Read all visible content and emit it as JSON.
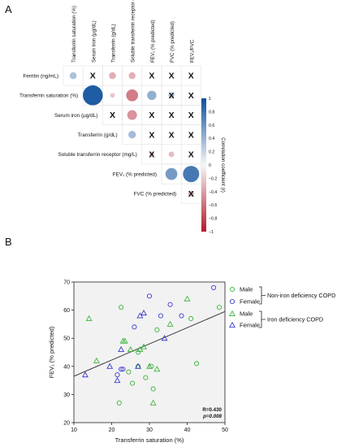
{
  "panels": {
    "a": "A",
    "b": "B"
  },
  "chart_data": [
    {
      "type": "heatmap",
      "columns": [
        "Transferrin saturation (%)",
        "Serum iron (µg/dL)",
        "Transferrin (g/dL)",
        "Soluble transferrin receptor (mg/L)",
        "FEV₁ (% predicted)",
        "FVC (% predicted)",
        "FEV₁/FVC"
      ],
      "rows": [
        "Ferritin (ng/mL)",
        "Transferrin saturation (%)",
        "Serum iron (µg/dL)",
        "Transferrin (g/dL)",
        "Soluble transferrin receptor (mg/L)",
        "FEV₁ (% predicted)",
        "FVC (% predicted)"
      ],
      "cells": [
        {
          "row": 0,
          "col": 0,
          "r": 0.32,
          "sig": true
        },
        {
          "row": 0,
          "col": 1,
          "r": 0.05,
          "sig": false
        },
        {
          "row": 0,
          "col": 2,
          "r": -0.32,
          "sig": true
        },
        {
          "row": 0,
          "col": 3,
          "r": -0.32,
          "sig": true
        },
        {
          "row": 0,
          "col": 4,
          "r": 0.0,
          "sig": false
        },
        {
          "row": 0,
          "col": 5,
          "r": 0.0,
          "sig": false
        },
        {
          "row": 0,
          "col": 6,
          "r": 0.0,
          "sig": false
        },
        {
          "row": 1,
          "col": 1,
          "r": 0.92,
          "sig": true
        },
        {
          "row": 1,
          "col": 2,
          "r": -0.22,
          "sig": true
        },
        {
          "row": 1,
          "col": 3,
          "r": -0.55,
          "sig": true
        },
        {
          "row": 1,
          "col": 4,
          "r": 0.43,
          "sig": true
        },
        {
          "row": 1,
          "col": 5,
          "r": 0.28,
          "sig": false
        },
        {
          "row": 1,
          "col": 6,
          "r": 0.0,
          "sig": false
        },
        {
          "row": 2,
          "col": 2,
          "r": 0.0,
          "sig": false
        },
        {
          "row": 2,
          "col": 3,
          "r": -0.45,
          "sig": true
        },
        {
          "row": 2,
          "col": 4,
          "r": 0.0,
          "sig": false
        },
        {
          "row": 2,
          "col": 5,
          "r": 0.08,
          "sig": false
        },
        {
          "row": 2,
          "col": 6,
          "r": 0.0,
          "sig": false
        },
        {
          "row": 3,
          "col": 3,
          "r": 0.35,
          "sig": true
        },
        {
          "row": 3,
          "col": 4,
          "r": 0.0,
          "sig": false
        },
        {
          "row": 3,
          "col": 5,
          "r": 0.0,
          "sig": false
        },
        {
          "row": 3,
          "col": 6,
          "r": -0.15,
          "sig": false
        },
        {
          "row": 4,
          "col": 4,
          "r": -0.24,
          "sig": false
        },
        {
          "row": 4,
          "col": 5,
          "r": -0.26,
          "sig": true
        },
        {
          "row": 4,
          "col": 6,
          "r": 0.0,
          "sig": false
        },
        {
          "row": 5,
          "col": 5,
          "r": 0.55,
          "sig": true
        },
        {
          "row": 5,
          "col": 6,
          "r": 0.75,
          "sig": true
        },
        {
          "row": 6,
          "col": 6,
          "r": -0.28,
          "sig": false
        }
      ],
      "colorbar": {
        "label": "Correlation coefficient (r)",
        "ticks": [
          "1",
          "0.8",
          "0.6",
          "0.4",
          "0.2",
          "0",
          "−0.2",
          "−0.4",
          "−0.6",
          "−0.8",
          "−1"
        ],
        "range": [
          -1,
          1
        ],
        "colors": {
          "positive": "#0b4f9c",
          "negative": "#b2182b",
          "zero": "#f7f7f7"
        }
      },
      "nonsig_marker": "X"
    },
    {
      "type": "scatter",
      "xlabel": "Transferrin saturation (%)",
      "ylabel": "FEV₁ (% predicted)",
      "xlim": [
        10,
        50
      ],
      "ylim": [
        20,
        70
      ],
      "xticks": [
        "10",
        "20",
        "30",
        "40",
        "50"
      ],
      "yticks": [
        "20",
        "30",
        "40",
        "50",
        "60",
        "70"
      ],
      "grid": false,
      "legend_position": "right",
      "series": [
        {
          "name": "Male",
          "group": "Non-iron deficiency COPD",
          "marker": "circle",
          "color": "#3cb43c",
          "points": [
            [
              22.5,
              61
            ],
            [
              24.5,
              38
            ],
            [
              25.5,
              34
            ],
            [
              22.0,
              27
            ],
            [
              27.0,
              45
            ],
            [
              27.0,
              40
            ],
            [
              29.0,
              36
            ],
            [
              30.5,
              40
            ],
            [
              31.0,
              32
            ],
            [
              32.0,
              53
            ],
            [
              41.0,
              57
            ],
            [
              42.5,
              41
            ],
            [
              48.5,
              61
            ]
          ]
        },
        {
          "name": "Female",
          "group": "Non-iron deficiency COPD",
          "marker": "circle",
          "color": "#3c3cd2",
          "points": [
            [
              21.5,
              37
            ],
            [
              22.5,
              39
            ],
            [
              23.0,
              39
            ],
            [
              26.0,
              54
            ],
            [
              30.0,
              65
            ],
            [
              33.0,
              58
            ],
            [
              35.5,
              62
            ],
            [
              38.5,
              58
            ],
            [
              47.0,
              68
            ]
          ]
        },
        {
          "name": "Male",
          "group": "Iron deficiency COPD",
          "marker": "triangle",
          "color": "#3cb43c",
          "points": [
            [
              14.0,
              57
            ],
            [
              16.0,
              42
            ],
            [
              23.0,
              49
            ],
            [
              23.5,
              49
            ],
            [
              25.0,
              46
            ],
            [
              27.5,
              46
            ],
            [
              28.5,
              47
            ],
            [
              30.0,
              40
            ],
            [
              31.0,
              27
            ],
            [
              32.0,
              39
            ],
            [
              35.5,
              55
            ],
            [
              40.0,
              64
            ]
          ]
        },
        {
          "name": "Female",
          "group": "Iron deficiency COPD",
          "marker": "triangle",
          "color": "#3c3cd2",
          "points": [
            [
              13.0,
              37
            ],
            [
              19.5,
              40
            ],
            [
              21.5,
              35
            ],
            [
              22.5,
              46
            ],
            [
              27.0,
              40
            ],
            [
              27.5,
              58
            ],
            [
              28.5,
              59
            ],
            [
              34.0,
              50
            ]
          ]
        }
      ],
      "fit_line": {
        "x": [
          10,
          50
        ],
        "y": [
          36.5,
          59.5
        ]
      },
      "annotations": [
        "R=0.430",
        "p=0.008"
      ],
      "legend": {
        "entries": [
          {
            "label": "Male",
            "marker": "circle",
            "color": "#3cb43c"
          },
          {
            "label": "Female",
            "marker": "circle",
            "color": "#3c3cd2"
          },
          {
            "label": "Male",
            "marker": "triangle",
            "color": "#3cb43c"
          },
          {
            "label": "Female",
            "marker": "triangle",
            "color": "#3c3cd2"
          }
        ],
        "groups": [
          "Non-iron deficiency COPD",
          "Iron deficiency COPD"
        ]
      }
    }
  ]
}
